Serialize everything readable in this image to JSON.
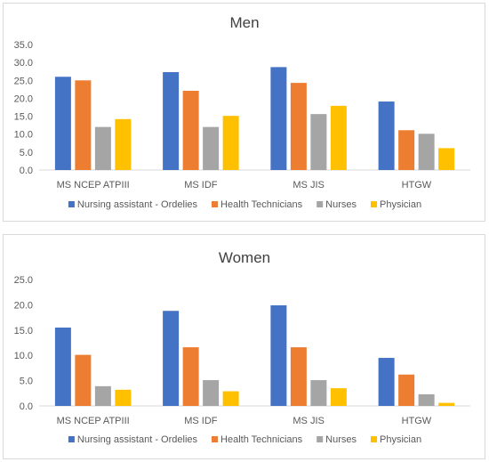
{
  "chart_data": [
    {
      "type": "bar",
      "title": "Men",
      "categories": [
        "MS NCEP ATPIII",
        "MS IDF",
        "MS JIS",
        "HTGW"
      ],
      "series": [
        {
          "name": "Nursing assistant - Ordelies",
          "color": "#4472C4",
          "values": [
            26.0,
            27.3,
            28.7,
            19.1
          ]
        },
        {
          "name": "Health Technicians",
          "color": "#ED7D31",
          "values": [
            25.0,
            22.1,
            24.3,
            11.1
          ]
        },
        {
          "name": "Nurses",
          "color": "#A5A5A5",
          "values": [
            12.0,
            12.0,
            15.6,
            10.1
          ]
        },
        {
          "name": "Physician",
          "color": "#FFC000",
          "values": [
            14.2,
            15.1,
            17.9,
            6.1
          ]
        }
      ],
      "ylim": [
        0,
        35
      ],
      "yticks": [
        "0.0",
        "5.0",
        "10.0",
        "15.0",
        "20.0",
        "25.0",
        "30.0",
        "35.0"
      ],
      "grid": false,
      "legend": "bottom"
    },
    {
      "type": "bar",
      "title": "Women",
      "categories": [
        "MS NCEP ATPIII",
        "MS IDF",
        "MS JIS",
        "HTGW"
      ],
      "series": [
        {
          "name": "Nursing assistant - Ordelies",
          "color": "#4472C4",
          "values": [
            15.5,
            18.8,
            19.9,
            9.5
          ]
        },
        {
          "name": "Health Technicians",
          "color": "#ED7D31",
          "values": [
            10.1,
            11.6,
            11.6,
            6.2
          ]
        },
        {
          "name": "Nurses",
          "color": "#A5A5A5",
          "values": [
            3.9,
            5.1,
            5.1,
            2.3
          ]
        },
        {
          "name": "Physician",
          "color": "#FFC000",
          "values": [
            3.2,
            2.9,
            3.5,
            0.6
          ]
        }
      ],
      "ylim": [
        0,
        25
      ],
      "yticks": [
        "0.0",
        "5.0",
        "10.0",
        "15.0",
        "20.0",
        "25.0"
      ],
      "grid": false,
      "legend": "bottom"
    }
  ]
}
